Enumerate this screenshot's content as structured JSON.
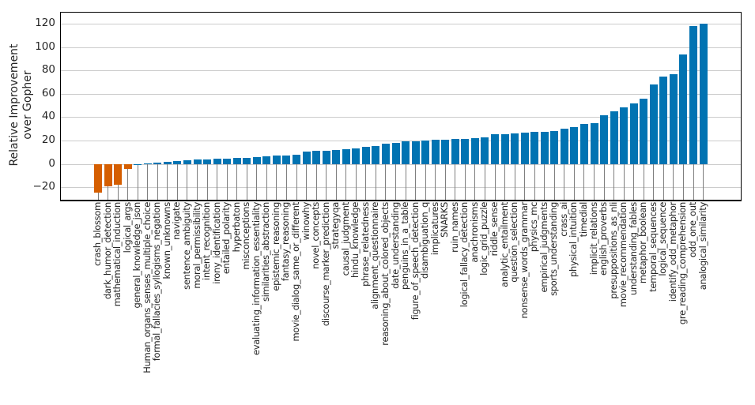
{
  "figure": {
    "ylabel_display": "Relative Improvement\nover Gopher"
  },
  "chart_data": {
    "type": "bar",
    "title": "",
    "xlabel": "",
    "ylabel": "Relative Improvement over Gopher",
    "legend": null,
    "grid": true,
    "ylim": [
      -30,
      130
    ],
    "yticks": [
      -20,
      0,
      20,
      40,
      60,
      80,
      100,
      120
    ],
    "colors": {
      "positive": "#0173b2",
      "negative": "#d55e00"
    },
    "categories": [
      "crash_blossom",
      "dark_humor_detection",
      "mathematical_induction",
      "logical_args",
      "general_knowledge_json",
      "Human_organs_senses_multiple_choice",
      "formal_fallacies_syllogisms_negation",
      "known_unknowns",
      "navigate",
      "sentence_ambiguity",
      "moral_permissibility",
      "intent_recognition",
      "irony_identification",
      "entailed_polarity",
      "hyperbaton",
      "misconceptions",
      "evaluating_information_essentiality",
      "similarities_abstraction",
      "epistemic_reasoning",
      "fantasy_reasoning",
      "movie_dialog_same_or_different",
      "winowhy",
      "novel_concepts",
      "discourse_marker_prediction",
      "strategyqa",
      "causal_judgment",
      "hindu_knowledge",
      "phrase_relatedness",
      "alignment_questionnaire",
      "reasoning_about_colored_objects",
      "date_understanding",
      "penguins_in_a_table",
      "figure_of_speech_detection",
      "disambiguation_q",
      "implicatures",
      "SNARKS",
      "ruin_names",
      "logical_fallacy_detection",
      "anachronisms",
      "logic_grid_puzzle",
      "riddle_sense",
      "analytic_entailment",
      "question_selection",
      "nonsense_words_grammar",
      "physics_mc",
      "empirical_judgments",
      "sports_understanding",
      "crass_ai",
      "physical_intuition",
      "timedial",
      "implicit_relations",
      "english_proverbs",
      "presuppositions_as_nli",
      "movie_recommendation",
      "understanding_fables",
      "metaphor_boolean",
      "temporal_sequences",
      "logical_sequence",
      "identify_odd_metaphor",
      "gre_reading_comprehension",
      "odd_one_out",
      "analogical_similarity"
    ],
    "values": [
      -24,
      -19,
      -17.5,
      -4,
      0.2,
      0.5,
      1.6,
      2.2,
      2.6,
      3.3,
      4.0,
      4.3,
      4.5,
      4.8,
      5.2,
      5.5,
      6.2,
      6.5,
      7.3,
      7.7,
      8.1,
      10.7,
      11.2,
      11.6,
      12.0,
      12.8,
      13.8,
      14.7,
      15.6,
      17.5,
      18.3,
      19.3,
      19.8,
      20.3,
      20.7,
      21.0,
      21.4,
      21.8,
      22.3,
      22.8,
      25.4,
      25.9,
      26.4,
      27.0,
      27.4,
      28.0,
      28.4,
      30.7,
      31.6,
      34.2,
      35.0,
      42.2,
      45.4,
      48.8,
      51.8,
      55.8,
      68.0,
      75.3,
      77.0,
      94.0,
      118.5,
      120.0
    ]
  }
}
